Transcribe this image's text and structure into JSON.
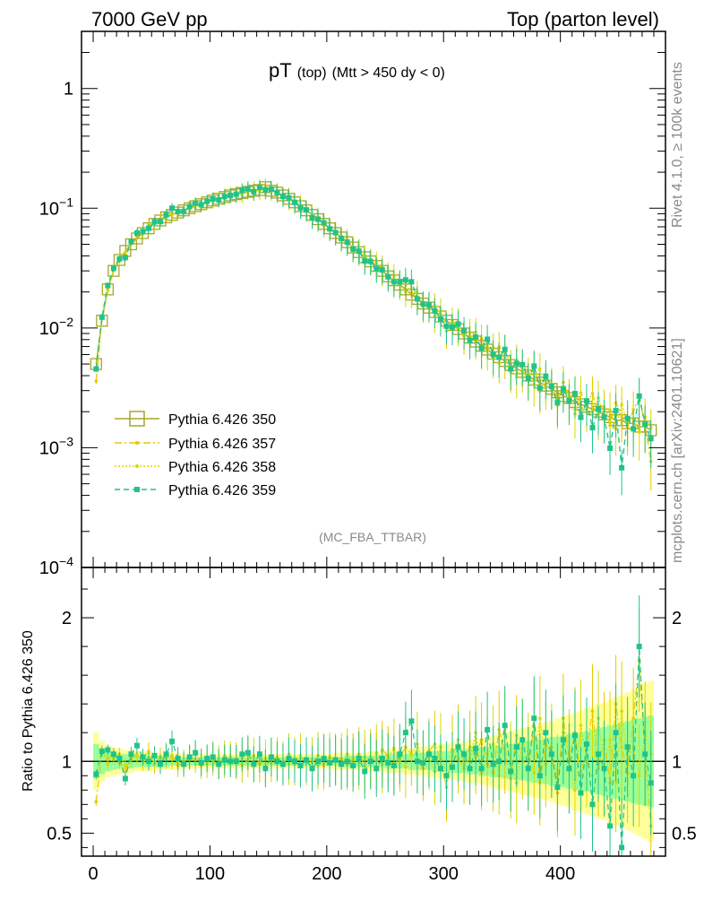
{
  "header": {
    "left": "7000 GeV pp",
    "right": "Top (parton level)"
  },
  "side": {
    "rivet": "Rivet 4.1.0, ≥ 100k events",
    "site": "mcplots.cern.ch [arXiv:2401.10621]"
  },
  "colors": {
    "p350": "#a7a72c",
    "p357": "#e8c800",
    "p358": "#d8d800",
    "p359": "#1fc48a",
    "band_yellow": "#ffff99",
    "band_green": "#99ff99"
  },
  "chart_data": {
    "type": "line",
    "title_main": "pT",
    "title_sub": "(top)",
    "title_cut": "(Mtt > 450 dy < 0)",
    "analysis": "(MC_FBA_TTBAR)",
    "xlim": [
      -10,
      490
    ],
    "main": {
      "ylog": true,
      "ylim": [
        0.0001,
        3.0
      ],
      "ytick_labels": [
        {
          "base": "1",
          "exp": ""
        },
        {
          "base": "10",
          "exp": "−1"
        },
        {
          "base": "10",
          "exp": "−2"
        },
        {
          "base": "10",
          "exp": "−3"
        },
        {
          "base": "10",
          "exp": "−4"
        }
      ],
      "ytick_values": [
        1,
        0.1,
        0.01,
        0.001,
        0.0001
      ]
    },
    "ratio": {
      "ylabel": "Ratio to Pythia 6.426 350",
      "ylim": [
        0.34,
        2.35
      ],
      "ytick_labels": [
        "0.5",
        "1",
        "2"
      ],
      "ytick_values": [
        0.5,
        1,
        2
      ]
    },
    "xtick_labels": [
      "0",
      "100",
      "200",
      "300",
      "400"
    ],
    "xtick_values": [
      0,
      100,
      200,
      300,
      400
    ],
    "legend": [
      "Pythia 6.426 350",
      "Pythia 6.426 357",
      "Pythia 6.426 358",
      "Pythia 6.426 359"
    ],
    "x": [
      2.5,
      7.5,
      12.5,
      17.5,
      22.5,
      27.5,
      32.5,
      37.5,
      42.5,
      47.5,
      52.5,
      57.5,
      62.5,
      67.5,
      72.5,
      77.5,
      82.5,
      87.5,
      92.5,
      97.5,
      102.5,
      107.5,
      112.5,
      117.5,
      122.5,
      127.5,
      132.5,
      137.5,
      142.5,
      147.5,
      152.5,
      157.5,
      162.5,
      167.5,
      172.5,
      177.5,
      182.5,
      187.5,
      192.5,
      197.5,
      202.5,
      207.5,
      212.5,
      217.5,
      222.5,
      227.5,
      232.5,
      237.5,
      242.5,
      247.5,
      252.5,
      257.5,
      262.5,
      267.5,
      272.5,
      277.5,
      282.5,
      287.5,
      292.5,
      297.5,
      302.5,
      307.5,
      312.5,
      317.5,
      322.5,
      327.5,
      332.5,
      337.5,
      342.5,
      347.5,
      352.5,
      357.5,
      362.5,
      367.5,
      372.5,
      377.5,
      382.5,
      387.5,
      392.5,
      397.5,
      402.5,
      407.5,
      412.5,
      417.5,
      422.5,
      427.5,
      432.5,
      437.5,
      442.5,
      447.5,
      452.5,
      457.5,
      462.5,
      467.5,
      472.5,
      477.5
    ],
    "series": [
      {
        "name": "Pythia 6.426 350",
        "values": [
          0.005,
          0.0115,
          0.021,
          0.03,
          0.037,
          0.044,
          0.05,
          0.056,
          0.062,
          0.068,
          0.074,
          0.079,
          0.084,
          0.088,
          0.092,
          0.096,
          0.1,
          0.104,
          0.108,
          0.112,
          0.116,
          0.12,
          0.124,
          0.128,
          0.131,
          0.134,
          0.137,
          0.14,
          0.142,
          0.15,
          0.14,
          0.135,
          0.128,
          0.12,
          0.112,
          0.104,
          0.096,
          0.088,
          0.081,
          0.074,
          0.068,
          0.062,
          0.057,
          0.052,
          0.047,
          0.043,
          0.039,
          0.036,
          0.033,
          0.03,
          0.027,
          0.025,
          0.023,
          0.021,
          0.019,
          0.0175,
          0.016,
          0.0148,
          0.0136,
          0.0125,
          0.0115,
          0.0106,
          0.0098,
          0.009,
          0.0083,
          0.0077,
          0.0071,
          0.0066,
          0.0061,
          0.0057,
          0.0053,
          0.0049,
          0.0046,
          0.0043,
          0.004,
          0.0037,
          0.0035,
          0.0033,
          0.0031,
          0.0029,
          0.0027,
          0.0026,
          0.0024,
          0.0023,
          0.0022,
          0.0021,
          0.002,
          0.0019,
          0.0018,
          0.0017,
          0.0017,
          0.0016,
          0.0016,
          0.0015,
          0.0015,
          0.0014
        ]
      },
      {
        "name": "Pythia 6.426 357",
        "ratio": [
          0.72,
          1.06,
          1.02,
          1.05,
          0.99,
          0.93,
          1.03,
          1.05,
          1.02,
          1.07,
          0.98,
          1.03,
          1.02,
          1.04,
          0.97,
          1.0,
          1.03,
          1.01,
          0.97,
          1.02,
          1.0,
          0.98,
          1.04,
          1.01,
          0.99,
          1.02,
          1.05,
          0.98,
          1.0,
          0.96,
          1.03,
          1.01,
          0.97,
          1.05,
          0.98,
          1.02,
          1.01,
          0.99,
          1.04,
          0.97,
          1.03,
          1.0,
          1.02,
          0.98,
          1.01,
          1.05,
          0.97,
          1.03,
          1.0,
          1.08,
          1.04,
          0.98,
          1.02,
          1.1,
          1.05,
          1.0,
          0.95,
          1.07,
          1.12,
          1.01,
          0.82,
          1.08,
          1.02,
          0.95,
          1.1,
          1.03,
          1.15,
          0.98,
          0.92,
          1.22,
          1.05,
          0.88,
          1.18,
          1.02,
          0.94,
          1.25,
          0.85,
          1.12,
          1.05,
          0.78,
          1.3,
          1.02,
          1.2,
          0.9,
          1.08,
          1.35,
          0.95,
          1.15,
          0.85,
          1.4,
          1.1,
          0.92,
          1.3,
          1.7,
          1.05,
          0.55
        ]
      },
      {
        "name": "Pythia 6.426 358",
        "ratio": [
          0.9,
          1.08,
          0.98,
          1.02,
          1.05,
          0.97,
          1.01,
          1.04,
          0.99,
          1.03,
          1.0,
          0.98,
          1.06,
          1.02,
          1.0,
          0.97,
          1.03,
          1.05,
          1.0,
          0.98,
          1.04,
          1.01,
          0.99,
          1.03,
          1.02,
          0.97,
          1.01,
          1.04,
          0.98,
          1.02,
          0.99,
          1.03,
          1.0,
          0.98,
          1.02,
          1.04,
          0.99,
          1.01,
          0.97,
          1.03,
          1.0,
          1.02,
          0.98,
          1.05,
          1.01,
          0.99,
          1.03,
          1.0,
          1.06,
          0.98,
          1.02,
          1.09,
          1.0,
          0.96,
          1.05,
          1.12,
          0.99,
          1.03,
          0.93,
          1.1,
          0.9,
          1.04,
          1.15,
          0.97,
          1.02,
          1.2,
          0.92,
          1.05,
          1.12,
          0.9,
          1.22,
          1.0,
          0.85,
          1.15,
          1.05,
          0.92,
          1.3,
          0.98,
          1.1,
          0.88,
          1.2,
          1.05,
          0.8,
          1.25,
          1.0,
          0.9,
          1.3,
          0.95,
          1.15,
          0.85,
          1.35,
          1.0,
          1.1,
          0.9,
          1.2,
          1.05
        ]
      },
      {
        "name": "Pythia 6.426 359",
        "ratio": [
          0.91,
          1.07,
          1.08,
          1.05,
          1.02,
          0.88,
          1.05,
          1.11,
          1.03,
          1.0,
          1.04,
          0.98,
          1.05,
          1.14,
          1.02,
          0.98,
          1.03,
          1.06,
          0.99,
          1.02,
          1.03,
          0.98,
          1.01,
          1.0,
          1.0,
          1.05,
          1.06,
          0.98,
          1.05,
          0.95,
          1.03,
          1.0,
          0.98,
          1.02,
          1.0,
          0.97,
          1.01,
          0.95,
          1.0,
          1.02,
          0.99,
          1.01,
          0.98,
          1.0,
          0.97,
          1.02,
          0.93,
          1.0,
          0.95,
          1.02,
          0.99,
          0.97,
          1.05,
          1.2,
          1.28,
          1.0,
          0.99,
          1.05,
          1.02,
          0.95,
          0.9,
          0.96,
          1.1,
          1.05,
          0.95,
          1.09,
          0.95,
          1.22,
          0.98,
          1.0,
          1.25,
          0.93,
          1.1,
          1.15,
          0.95,
          1.3,
          0.9,
          1.2,
          1.05,
          0.82,
          1.15,
          0.95,
          1.18,
          0.78,
          1.12,
          0.7,
          1.05,
          0.95,
          0.55,
          1.2,
          0.4,
          1.1,
          0.9,
          1.8,
          1.05,
          0.85
        ]
      }
    ],
    "band_yellow_halfwidth": [
      0.2,
      0.14,
      0.11,
      0.1,
      0.09,
      0.08,
      0.08,
      0.07,
      0.07,
      0.07,
      0.06,
      0.06,
      0.06,
      0.06,
      0.06,
      0.05,
      0.05,
      0.05,
      0.05,
      0.05,
      0.05,
      0.05,
      0.05,
      0.05,
      0.05,
      0.05,
      0.05,
      0.05,
      0.05,
      0.05,
      0.05,
      0.05,
      0.05,
      0.05,
      0.05,
      0.05,
      0.05,
      0.05,
      0.05,
      0.05,
      0.05,
      0.06,
      0.06,
      0.06,
      0.06,
      0.06,
      0.06,
      0.07,
      0.07,
      0.07,
      0.08,
      0.08,
      0.08,
      0.09,
      0.09,
      0.1,
      0.1,
      0.11,
      0.11,
      0.12,
      0.12,
      0.13,
      0.13,
      0.14,
      0.15,
      0.15,
      0.16,
      0.17,
      0.18,
      0.19,
      0.2,
      0.21,
      0.22,
      0.23,
      0.24,
      0.25,
      0.26,
      0.27,
      0.28,
      0.3,
      0.31,
      0.32,
      0.34,
      0.35,
      0.37,
      0.38,
      0.4,
      0.41,
      0.43,
      0.45,
      0.46,
      0.48,
      0.5,
      0.52,
      0.54,
      0.56
    ],
    "band_green_halfwidth": [
      0.12,
      0.09,
      0.07,
      0.06,
      0.05,
      0.05,
      0.05,
      0.04,
      0.04,
      0.04,
      0.04,
      0.04,
      0.04,
      0.03,
      0.03,
      0.03,
      0.03,
      0.03,
      0.03,
      0.03,
      0.03,
      0.03,
      0.03,
      0.03,
      0.03,
      0.03,
      0.03,
      0.03,
      0.03,
      0.03,
      0.03,
      0.03,
      0.03,
      0.03,
      0.03,
      0.03,
      0.03,
      0.03,
      0.03,
      0.03,
      0.03,
      0.03,
      0.03,
      0.04,
      0.04,
      0.04,
      0.04,
      0.04,
      0.04,
      0.04,
      0.05,
      0.05,
      0.05,
      0.05,
      0.06,
      0.06,
      0.06,
      0.06,
      0.07,
      0.07,
      0.07,
      0.08,
      0.08,
      0.08,
      0.09,
      0.09,
      0.1,
      0.1,
      0.11,
      0.11,
      0.12,
      0.12,
      0.13,
      0.13,
      0.14,
      0.15,
      0.15,
      0.16,
      0.17,
      0.17,
      0.18,
      0.19,
      0.2,
      0.2,
      0.21,
      0.22,
      0.23,
      0.24,
      0.25,
      0.26,
      0.27,
      0.28,
      0.29,
      0.3,
      0.31,
      0.32
    ]
  }
}
